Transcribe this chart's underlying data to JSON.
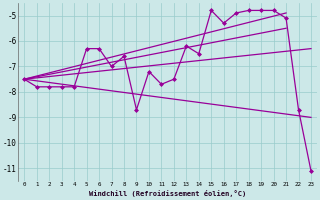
{
  "xlabel": "Windchill (Refroidissement éolien,°C)",
  "bg_color": "#cce8e8",
  "line_color": "#990099",
  "grid_color": "#99cccc",
  "xlim": [
    -0.5,
    23.5
  ],
  "ylim": [
    -11.5,
    -4.5
  ],
  "yticks": [
    -11,
    -10,
    -9,
    -8,
    -7,
    -6,
    -5
  ],
  "xticks": [
    0,
    1,
    2,
    3,
    4,
    5,
    6,
    7,
    8,
    9,
    10,
    11,
    12,
    13,
    14,
    15,
    16,
    17,
    18,
    19,
    20,
    21,
    22,
    23
  ],
  "main_x": [
    0,
    1,
    2,
    3,
    4,
    5,
    6,
    7,
    8,
    9,
    10,
    11,
    12,
    13,
    14,
    15,
    16,
    17,
    18,
    19,
    20,
    21,
    22,
    23
  ],
  "main_y": [
    -7.5,
    -7.8,
    -7.8,
    -7.8,
    -7.8,
    -6.3,
    -6.3,
    -7.0,
    -6.6,
    -8.7,
    -7.2,
    -7.7,
    -7.5,
    -6.2,
    -6.5,
    -4.8,
    -5.3,
    -4.9,
    -4.8,
    -4.8,
    -4.8,
    -5.1,
    -8.7,
    -11.1
  ],
  "line1_x": [
    0,
    21
  ],
  "line1_y": [
    -7.5,
    -4.9
  ],
  "line2_x": [
    0,
    23
  ],
  "line2_y": [
    -7.5,
    -9.0
  ],
  "line3_x": [
    0,
    21
  ],
  "line3_y": [
    -7.5,
    -5.5
  ],
  "line4_x": [
    0,
    23
  ],
  "line4_y": [
    -7.5,
    -6.3
  ]
}
